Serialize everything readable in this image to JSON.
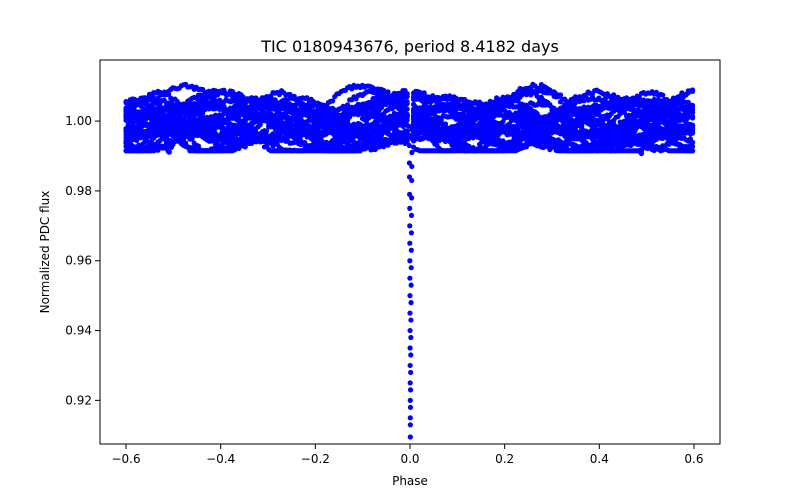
{
  "chart_data": {
    "type": "scatter",
    "title": "TIC 0180943676, period 8.4182 days",
    "xlabel": "Phase",
    "ylabel": "Normalized PDC flux",
    "xlim": [
      -0.655,
      0.655
    ],
    "ylim": [
      0.9075,
      1.0175
    ],
    "xticks": [
      -0.6,
      -0.4,
      -0.2,
      0.0,
      0.2,
      0.4,
      0.6
    ],
    "xtick_labels": [
      "−0.6",
      "−0.4",
      "−0.2",
      "0.0",
      "0.2",
      "0.4",
      "0.6"
    ],
    "yticks": [
      0.92,
      0.94,
      0.96,
      0.98,
      1.0
    ],
    "ytick_labels": [
      "0.92",
      "0.94",
      "0.96",
      "0.98",
      "1.00"
    ],
    "grid": false,
    "series": [
      {
        "name": "PDC flux",
        "color": "#0000ff",
        "marker": "circle",
        "baseline_phase_range": [
          -0.6,
          0.6
        ],
        "baseline_flux_range": [
          0.9915,
          1.0125
        ],
        "transit": {
          "center_phase": 0.0,
          "min_flux": 0.9095,
          "phase_width": 0.006,
          "points": [
            [
              -0.002,
              0.9985
            ],
            [
              -0.0018,
              0.996
            ],
            [
              -0.0015,
              0.993
            ],
            [
              -0.0012,
              0.988
            ],
            [
              -0.001,
              0.984
            ],
            [
              -0.0008,
              0.979
            ],
            [
              -0.0006,
              0.975
            ],
            [
              -0.0005,
              0.97
            ],
            [
              -0.0004,
              0.965
            ],
            [
              -0.0003,
              0.96
            ],
            [
              -0.0002,
              0.955
            ],
            [
              -0.0001,
              0.95
            ],
            [
              0.0,
              0.945
            ],
            [
              0.0001,
              0.94
            ],
            [
              0.0002,
              0.935
            ],
            [
              0.0003,
              0.93
            ],
            [
              0.0004,
              0.925
            ],
            [
              0.0005,
              0.92
            ],
            [
              0.0006,
              0.915
            ],
            [
              0.0007,
              0.9095
            ],
            [
              0.0008,
              0.913
            ],
            [
              0.001,
              0.918
            ],
            [
              0.0012,
              0.923
            ],
            [
              0.0014,
              0.928
            ],
            [
              0.0016,
              0.933
            ],
            [
              0.0018,
              0.938
            ],
            [
              0.002,
              0.943
            ],
            [
              0.0022,
              0.948
            ],
            [
              0.0024,
              0.953
            ],
            [
              0.0026,
              0.958
            ],
            [
              0.0028,
              0.963
            ],
            [
              0.003,
              0.968
            ],
            [
              0.0032,
              0.973
            ],
            [
              0.0034,
              0.978
            ],
            [
              0.0036,
              0.983
            ],
            [
              0.0038,
              0.987
            ],
            [
              0.004,
              0.991
            ],
            [
              0.0042,
              0.995
            ],
            [
              0.0044,
              0.9975
            ]
          ]
        }
      }
    ]
  }
}
